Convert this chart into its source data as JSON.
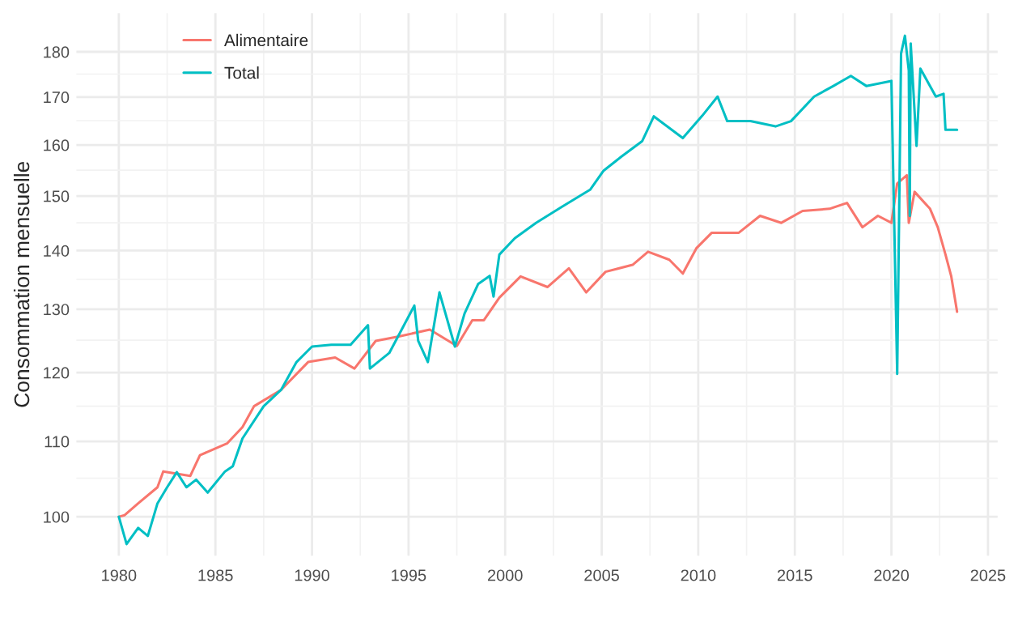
{
  "chart_data": {
    "type": "line",
    "ylabel": "Consommation mensuelle",
    "log": "y",
    "grid": true,
    "legend": "top left",
    "xlim": [
      1977.8,
      2025.5
    ],
    "xticks": [
      1980,
      1985,
      1990,
      1995,
      2000,
      2005,
      2010,
      2015,
      2020,
      2025
    ],
    "ylim": [
      95.2,
      189
    ],
    "yticks": [
      100,
      110,
      120,
      130,
      140,
      150,
      160,
      170,
      180
    ],
    "series": [
      {
        "name": "Alimentaire",
        "color": "#f8766d",
        "x": [
          1980,
          1980.3,
          1981,
          1982,
          1982.3,
          1983.7,
          1984.2,
          1985.6,
          1986.4,
          1987,
          1988.4,
          1989.8,
          1991.2,
          1992.2,
          1993.3,
          1994.5,
          1996.1,
          1997.5,
          1998.3,
          1998.9,
          1999.7,
          2000.8,
          2002.2,
          2003.3,
          2004.2,
          2005.2,
          2006.6,
          2007.4,
          2008.5,
          2009.2,
          2009.9,
          2010.7,
          2012.1,
          2013.2,
          2014.3,
          2015.4,
          2016.8,
          2017.7,
          2018.5,
          2019.3,
          2020,
          2020.3,
          2020.8,
          2020.9,
          2021.2,
          2022,
          2022.4,
          2022.8,
          2023.1,
          2023.4
        ],
        "values": [
          100,
          100.2,
          101.7,
          103.8,
          105.9,
          105.3,
          108.1,
          109.7,
          112,
          115,
          117.4,
          121.6,
          122.3,
          120.6,
          124.9,
          125.6,
          126.7,
          124.1,
          128.2,
          128.2,
          131.9,
          135.5,
          133.7,
          136.9,
          132.8,
          136.3,
          137.5,
          139.8,
          138.4,
          136,
          140.4,
          143.2,
          143.2,
          146.3,
          145,
          147.2,
          147.6,
          148.7,
          144.2,
          146.3,
          145,
          152.4,
          154,
          145,
          150.8,
          147.6,
          144.2,
          139.3,
          135.5,
          129.6
        ]
      },
      {
        "name": "Total",
        "color": "#00bfc4",
        "x": [
          1980,
          1980.4,
          1981,
          1981.5,
          1982,
          1982.5,
          1983,
          1983.5,
          1984,
          1984.6,
          1985.5,
          1985.9,
          1986.4,
          1987.5,
          1988.4,
          1989.2,
          1990,
          1991,
          1992,
          1992.9,
          1993,
          1994,
          1995.3,
          1995.5,
          1996,
          1996.6,
          1997.4,
          1997.9,
          1998.6,
          1999.2,
          1999.4,
          1999.7,
          2000.5,
          2001.6,
          2003,
          2004.4,
          2005.1,
          2006,
          2007.1,
          2007.7,
          2009.2,
          2010.2,
          2011,
          2011.5,
          2012.7,
          2014,
          2014.8,
          2016,
          2017,
          2017.9,
          2018.7,
          2020,
          2020.3,
          2020.5,
          2020.7,
          2020.9,
          2020.95,
          2021,
          2021.3,
          2021.5,
          2022.3,
          2022.7,
          2022.8,
          2023.4
        ],
        "values": [
          100,
          96.6,
          98.6,
          97.6,
          101.7,
          103.8,
          105.8,
          103.8,
          104.8,
          103.1,
          105.9,
          106.6,
          110.4,
          115,
          117.4,
          121.6,
          124,
          124.3,
          124.3,
          127.4,
          120.6,
          123,
          130.6,
          124.9,
          121.6,
          132.8,
          124,
          129.3,
          134.2,
          135.6,
          132.1,
          139.3,
          142.2,
          145,
          148.1,
          151.2,
          154.9,
          157.6,
          160.8,
          165.9,
          161.4,
          166,
          170.1,
          164.9,
          164.9,
          163.8,
          164.9,
          170.1,
          172.4,
          174.6,
          172.4,
          173.5,
          119.8,
          179.6,
          183.7,
          175.8,
          146.3,
          181.9,
          159.8,
          176.2,
          170.1,
          170.7,
          163.1,
          163.1
        ]
      }
    ]
  }
}
